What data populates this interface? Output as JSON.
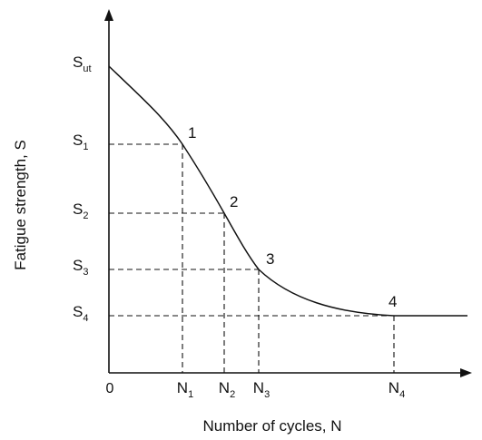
{
  "chart_data": {
    "type": "line",
    "xlabel": "Number of cycles, N",
    "ylabel": "Fatigue strength, S",
    "origin_label": "0",
    "grid": false,
    "axis_arrows": true,
    "stroke_color": "#111111",
    "y_ticks": [
      {
        "main": "S",
        "sub": "ut"
      },
      {
        "main": "S",
        "sub": "1"
      },
      {
        "main": "S",
        "sub": "2"
      },
      {
        "main": "S",
        "sub": "3"
      },
      {
        "main": "S",
        "sub": "4"
      }
    ],
    "x_ticks": [
      {
        "main": "N",
        "sub": "1"
      },
      {
        "main": "N",
        "sub": "2"
      },
      {
        "main": "N",
        "sub": "3"
      },
      {
        "main": "N",
        "sub": "4"
      }
    ],
    "points": [
      {
        "label": "1",
        "x_tick": "N1",
        "y_tick": "S1"
      },
      {
        "label": "2",
        "x_tick": "N2",
        "y_tick": "S2"
      },
      {
        "label": "3",
        "x_tick": "N3",
        "y_tick": "S3"
      },
      {
        "label": "4",
        "x_tick": "N4",
        "y_tick": "S4"
      }
    ],
    "curve": {
      "start": "Sut at N = 0",
      "end": "horizontal at S4 beyond N4",
      "guides": "dashed"
    }
  }
}
